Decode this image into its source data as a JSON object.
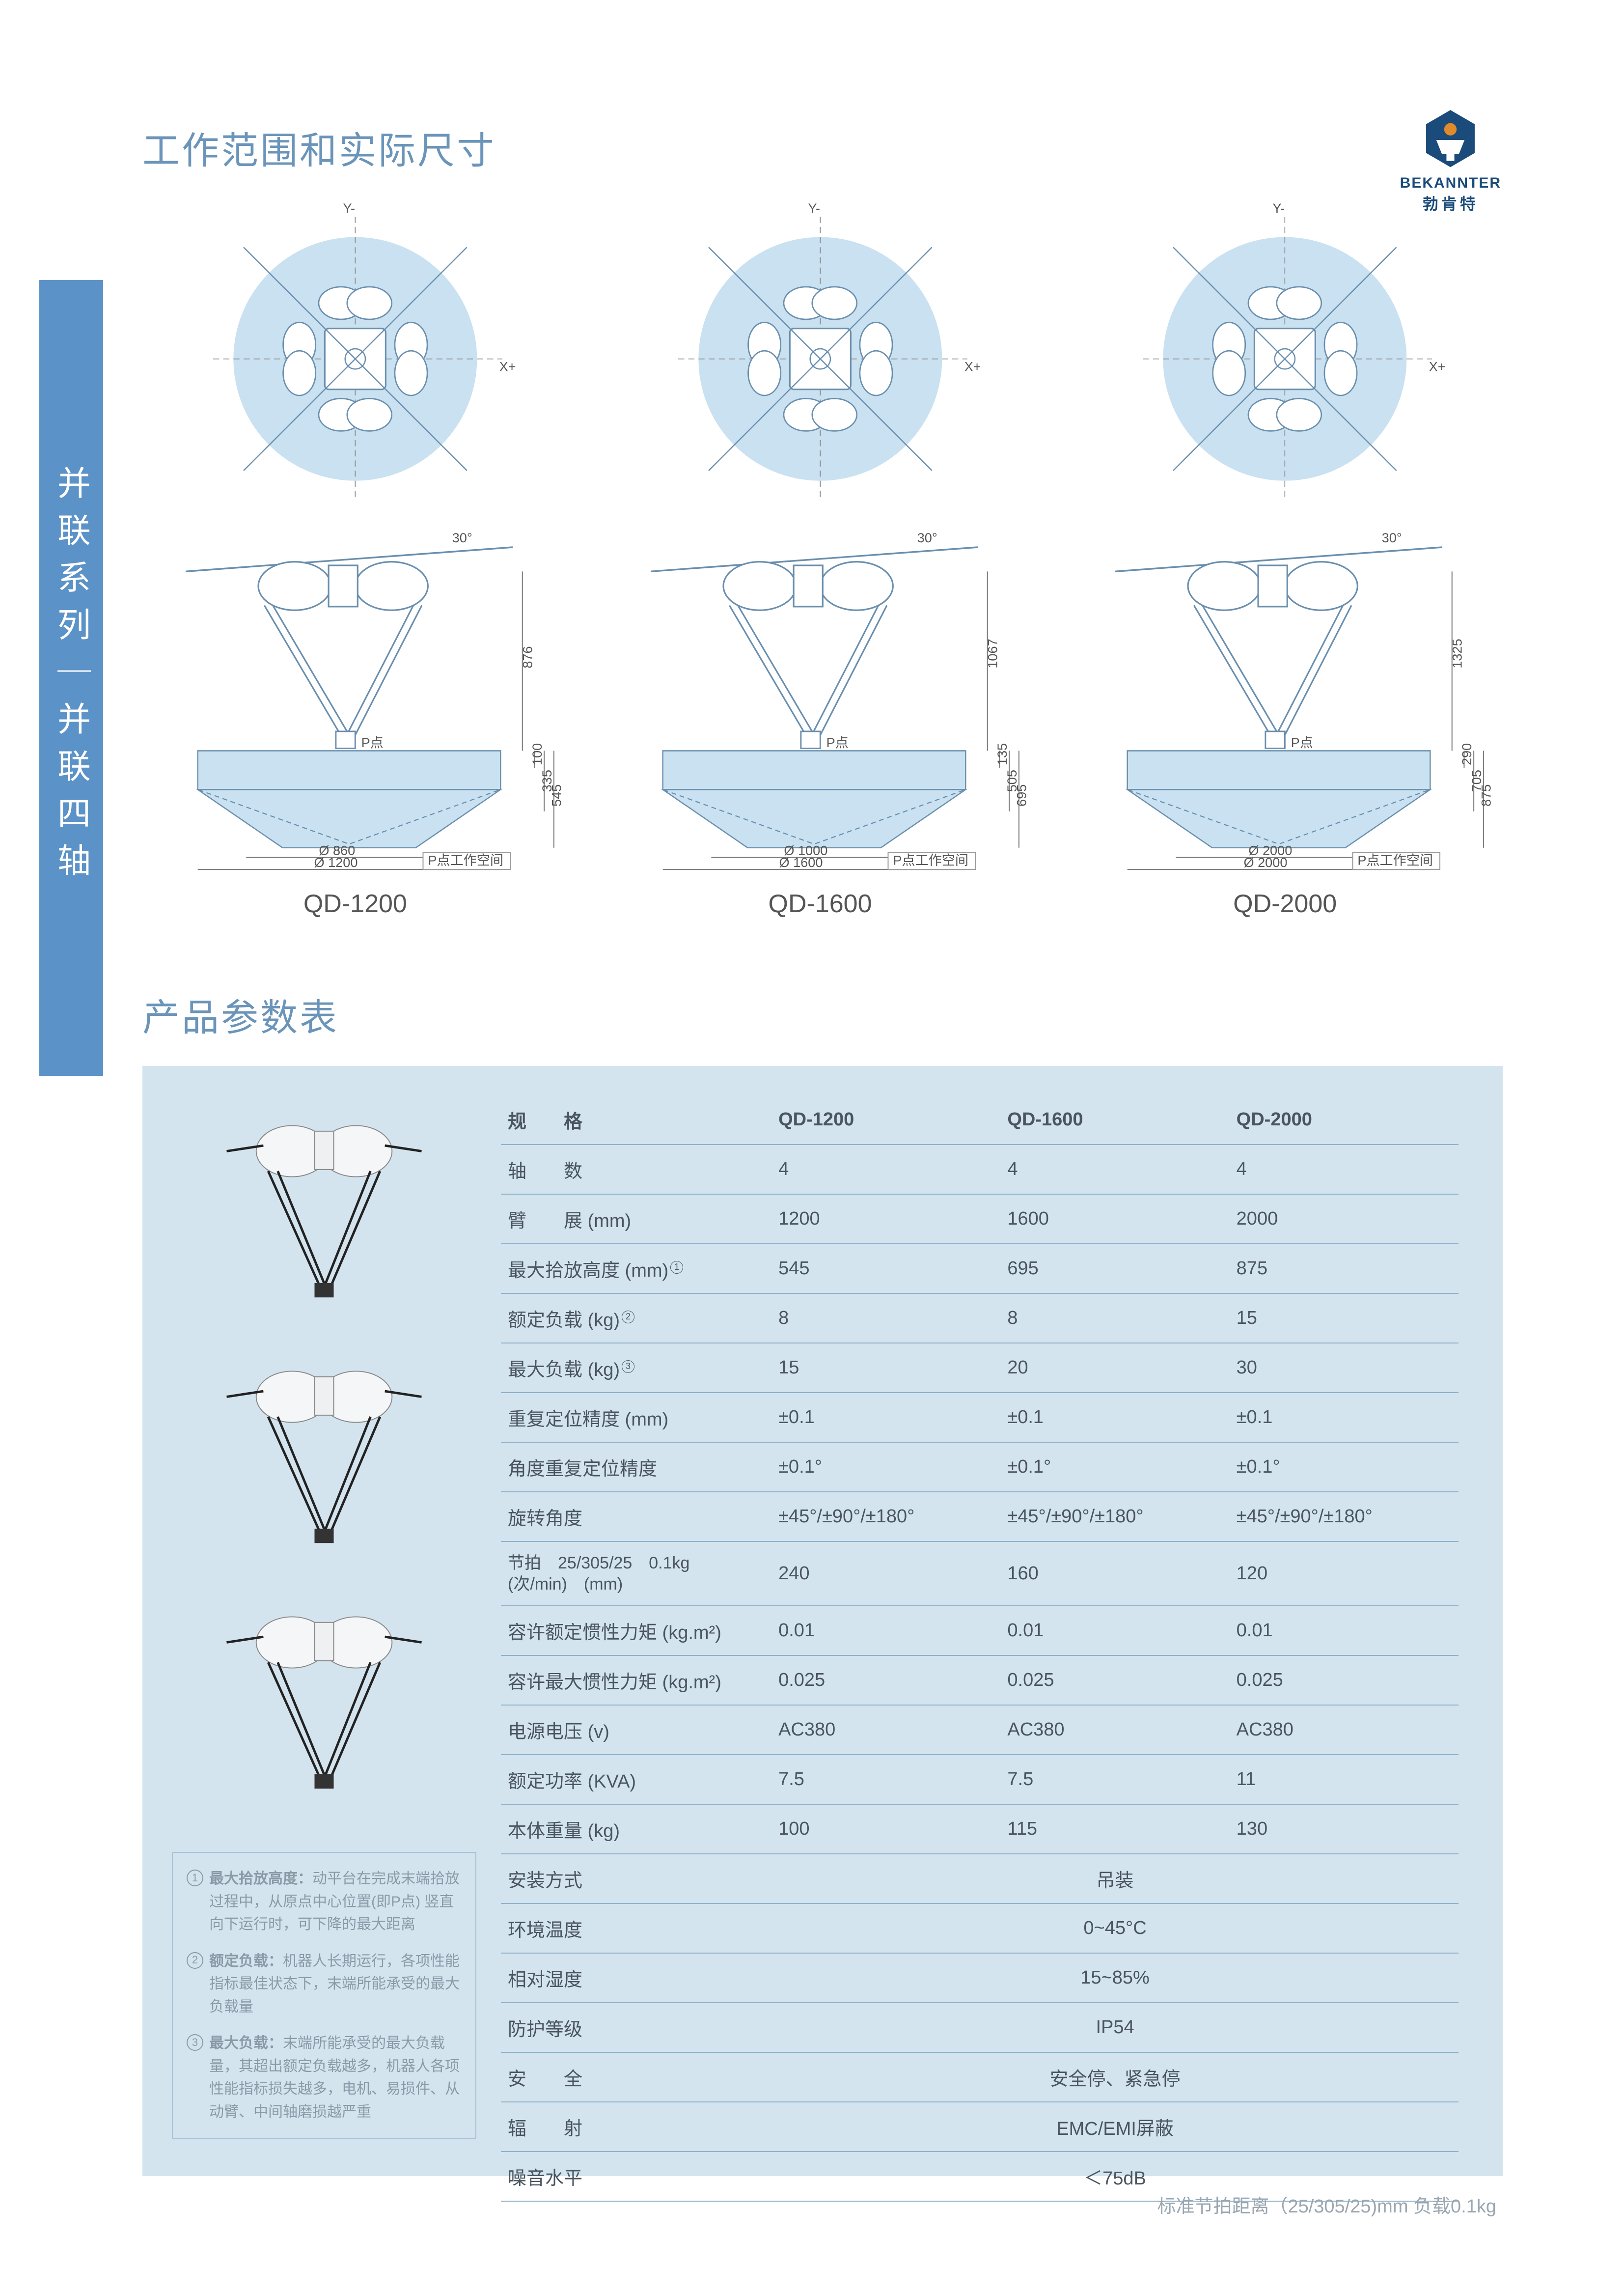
{
  "brand": {
    "en": "BEKANNTER",
    "cn": "勃肯特"
  },
  "sideLabel": "并联系列｜并联四轴",
  "sectionTitle1": "工作范围和实际尺寸",
  "sectionTitle2": "产品参数表",
  "models": [
    "QD-1200",
    "QD-1600",
    "QD-2000"
  ],
  "diagramCommon": {
    "axisXPlus": "X+",
    "axisYMinus": "Y-",
    "angle30": "30°",
    "pPoint": "P点",
    "pWorkspace": "P点工作空间"
  },
  "diagrams": [
    {
      "model": "QD-1200",
      "h_main": "876",
      "h_a": "100",
      "h_b": "335",
      "h_c": "545",
      "d_inner": "Ø 860",
      "d_outer": "Ø 1200"
    },
    {
      "model": "QD-1600",
      "h_main": "1067",
      "h_a": "135",
      "h_b": "505",
      "h_c": "695",
      "d_inner": "Ø 1000",
      "d_outer": "Ø 1600"
    },
    {
      "model": "QD-2000",
      "h_main": "1325",
      "h_a": "290",
      "h_b": "705",
      "h_c": "875",
      "d_inner": "Ø 2000",
      "d_outer": "Ø 2000"
    }
  ],
  "colors": {
    "sidebar": "#5b92c7",
    "panel": "#d3e4ef",
    "titleText": "#6a94b9",
    "tableText": "#4a5560",
    "tableBorder": "#8fb1c9",
    "noteText": "#8a9aa7",
    "diagramFill": "#c9e1f0",
    "diagramStroke": "#6a8fae",
    "logoBlue": "#1a4b7a",
    "logoOrange": "#e08a2c"
  },
  "specTable": {
    "header": [
      "规　　格",
      "QD-1200",
      "QD-1600",
      "QD-2000"
    ],
    "rows": [
      {
        "label": "轴　　数",
        "vals": [
          "4",
          "4",
          "4"
        ]
      },
      {
        "label": "臂　　展 (mm)",
        "vals": [
          "1200",
          "1600",
          "2000"
        ]
      },
      {
        "label": "最大拾放高度 (mm)",
        "sup": "1",
        "vals": [
          "545",
          "695",
          "875"
        ]
      },
      {
        "label": "额定负载 (kg)",
        "sup": "2",
        "vals": [
          "8",
          "8",
          "15"
        ]
      },
      {
        "label": "最大负载 (kg)",
        "sup": "3",
        "vals": [
          "15",
          "20",
          "30"
        ]
      },
      {
        "label": "重复定位精度 (mm)",
        "vals": [
          "±0.1",
          "±0.1",
          "±0.1"
        ]
      },
      {
        "label": "角度重复定位精度",
        "vals": [
          "±0.1°",
          "±0.1°",
          "±0.1°"
        ]
      },
      {
        "label": "旋转角度",
        "vals": [
          "±45°/±90°/±180°",
          "±45°/±90°/±180°",
          "±45°/±90°/±180°"
        ]
      },
      {
        "label_line1": "节拍　25/305/25",
        "label_line2": "(次/min)　(mm)",
        "label_suffix": "0.1kg",
        "vals": [
          "240",
          "160",
          "120"
        ]
      },
      {
        "label": "容许额定惯性力矩 (kg.m²)",
        "vals": [
          "0.01",
          "0.01",
          "0.01"
        ]
      },
      {
        "label": "容许最大惯性力矩 (kg.m²)",
        "vals": [
          "0.025",
          "0.025",
          "0.025"
        ]
      },
      {
        "label": "电源电压 (v)",
        "vals": [
          "AC380",
          "AC380",
          "AC380"
        ]
      },
      {
        "label": "额定功率 (KVA)",
        "vals": [
          "7.5",
          "7.5",
          "11"
        ]
      },
      {
        "label": "本体重量 (kg)",
        "vals": [
          "100",
          "115",
          "130"
        ]
      },
      {
        "label": "安装方式",
        "merged": "吊装"
      },
      {
        "label": "环境温度",
        "merged": "0~45°C"
      },
      {
        "label": "相对湿度",
        "merged": "15~85%"
      },
      {
        "label": "防护等级",
        "merged": "IP54"
      },
      {
        "label": "安　　全",
        "merged": "安全停、紧急停"
      },
      {
        "label": "辐　　射",
        "merged": "EMC/EMI屏蔽"
      },
      {
        "label": "噪音水平",
        "merged": "＜75dB"
      }
    ]
  },
  "notes": [
    {
      "num": "1",
      "title": "最大拾放高度：",
      "text": "动平台在完成末端拾放过程中，从原点中心位置(即P点) 竖直向下运行时，可下降的最大距离"
    },
    {
      "num": "2",
      "title": "额定负载：",
      "text": "机器人长期运行，各项性能指标最佳状态下，末端所能承受的最大负载量"
    },
    {
      "num": "3",
      "title": "最大负载：",
      "text": "末端所能承受的最大负载量，其超出额定负载越多，机器人各项性能指标损失越多，电机、易损件、从动臂、中间轴磨损越严重"
    }
  ],
  "footnote": "标准节拍距离（25/305/25)mm  负载0.1kg"
}
